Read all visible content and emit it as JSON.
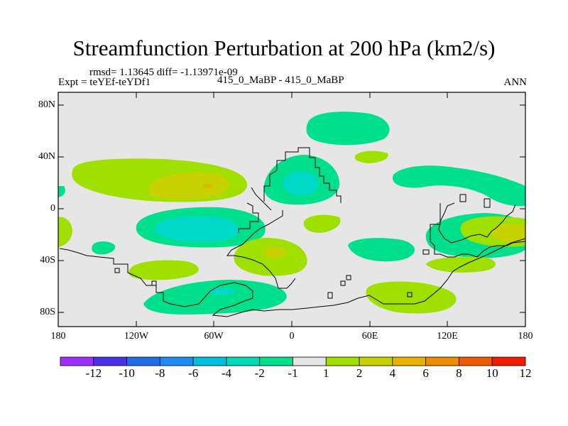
{
  "title": "Streamfunction Perturbation at 200 hPa (km2/s)",
  "stats": "rmsd= 1.13645 diff= -1.13971e-09",
  "experiment": "Expt = teYEf-teYDf1",
  "case_label": "415_0_MaBP - 415_0_MaBP",
  "season": "ANN",
  "axes": {
    "lat_ticks": [
      "80N",
      "40N",
      "0",
      "40S",
      "80S"
    ],
    "lon_ticks": [
      "180",
      "120W",
      "60W",
      "0",
      "60E",
      "120E",
      "180"
    ]
  },
  "colorbar": {
    "labels": [
      "-12",
      "-10",
      "-8",
      "-6",
      "-4",
      "-2",
      "-1",
      "1",
      "2",
      "4",
      "6",
      "8",
      "10",
      "12"
    ],
    "colors": [
      "#9b30ff",
      "#4b32e6",
      "#1e6ee6",
      "#1e8cf0",
      "#00c0e0",
      "#00d8b8",
      "#00e08c",
      "#e6e6e6",
      "#a0e000",
      "#c8d200",
      "#e6b400",
      "#f08c00",
      "#f05a00",
      "#f01e00"
    ]
  },
  "fills": {
    "background": "#e6e6e6",
    "neg1": "#00e08c",
    "neg2": "#00d8c8",
    "pos1": "#a0e000",
    "pos2": "#c8d200",
    "pos3": "#e0b400"
  }
}
